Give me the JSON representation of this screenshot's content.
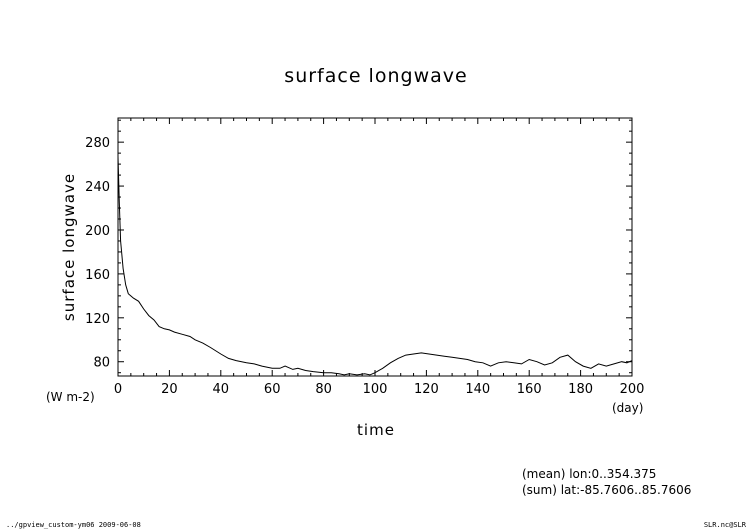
{
  "chart_data": {
    "type": "line",
    "title": "surface longwave",
    "xlabel": "time",
    "xunit": "(day)",
    "ylabel": "surface longwave",
    "yunit": "(W m-2)",
    "xlim": [
      0,
      200
    ],
    "ylim": [
      67,
      302
    ],
    "xticks": [
      0,
      20,
      40,
      60,
      80,
      100,
      120,
      140,
      160,
      180,
      200
    ],
    "yticks": [
      80,
      120,
      160,
      200,
      240,
      280
    ],
    "grid": false,
    "series": [
      {
        "x": [
          0,
          0.5,
          1,
          2,
          3,
          4,
          5,
          6,
          8,
          10,
          12,
          14,
          16,
          18,
          20,
          22,
          25,
          28,
          30,
          33,
          36,
          40,
          43,
          46,
          50,
          53,
          56,
          60,
          63,
          65,
          68,
          70,
          73,
          76,
          80,
          83,
          86,
          88,
          90,
          93,
          96,
          98,
          100,
          103,
          106,
          109,
          112,
          115,
          118,
          121,
          124,
          127,
          130,
          133,
          136,
          139,
          142,
          145,
          148,
          151,
          154,
          157,
          160,
          163,
          166,
          169,
          172,
          175,
          178,
          181,
          184,
          187,
          190,
          193,
          196,
          198,
          200
        ],
        "y": [
          267,
          225,
          190,
          165,
          150,
          142,
          140,
          138,
          135,
          128,
          122,
          118,
          112,
          110,
          109,
          107,
          105,
          103,
          100,
          97,
          93,
          87,
          83,
          81,
          79,
          78,
          76,
          74,
          74,
          76,
          73,
          74,
          72,
          71,
          70,
          70,
          69,
          68,
          69,
          68,
          69,
          68,
          70,
          74,
          79,
          83,
          86,
          87,
          88,
          87,
          86,
          85,
          84,
          83,
          82,
          80,
          79,
          76,
          79,
          80,
          79,
          78,
          82,
          80,
          77,
          79,
          84,
          86,
          80,
          76,
          74,
          78,
          76,
          78,
          80,
          79,
          81
        ]
      }
    ]
  },
  "annotations": {
    "mean": "(mean) lon:0..354.375",
    "sum": "(sum) lat:-85.7606..85.7606"
  },
  "footer": {
    "left": "../gpview_custom-ym06  2009-06-08",
    "right": "SLR.nc@SLR"
  }
}
